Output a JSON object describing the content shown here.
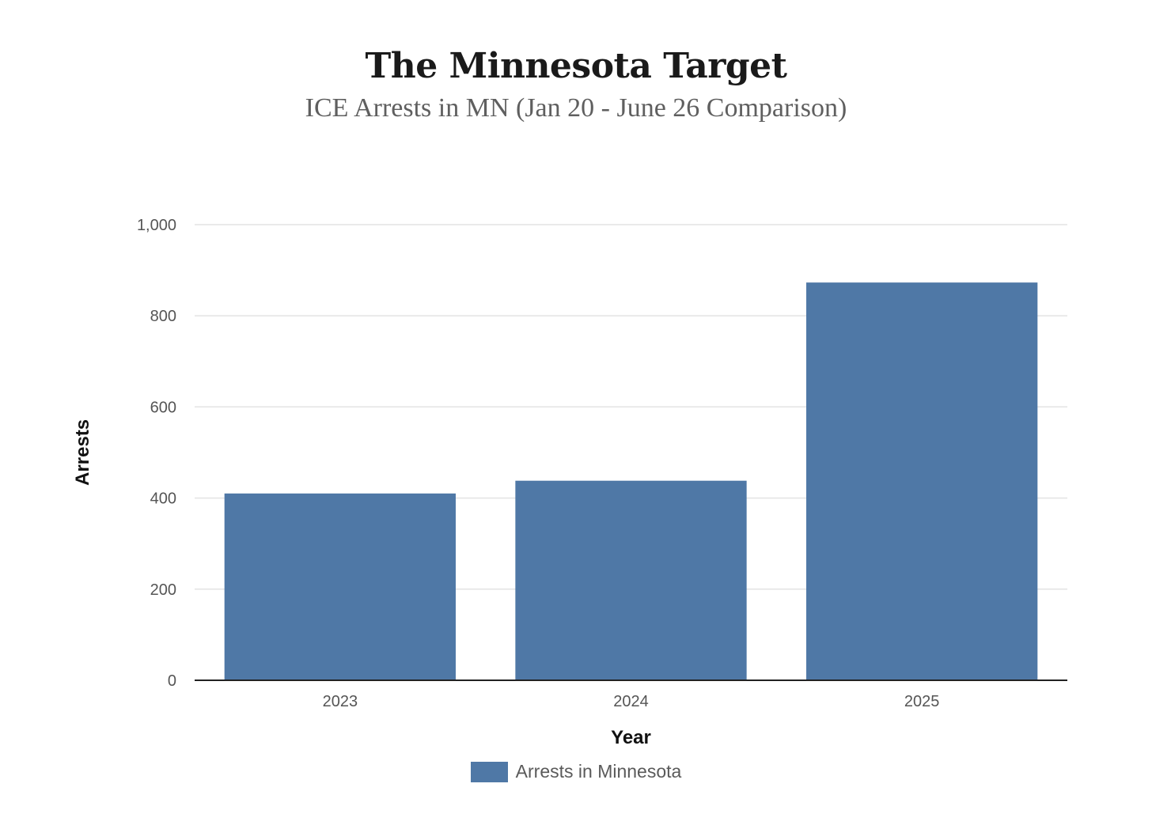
{
  "chart_data": {
    "type": "bar",
    "title": "The Minnesota Target",
    "subtitle": "ICE Arrests in MN (Jan 20 - June 26 Comparison)",
    "xlabel": "Year",
    "ylabel": "Arrests",
    "categories": [
      "2023",
      "2024",
      "2025"
    ],
    "series": [
      {
        "name": "Arrests in Minnesota",
        "values": [
          410,
          438,
          873
        ],
        "color": "#4f78a6"
      }
    ],
    "ylim": [
      0,
      1000
    ],
    "yticks": [
      0,
      200,
      400,
      600,
      800,
      1000
    ],
    "ytick_labels": [
      "0",
      "200",
      "400",
      "600",
      "800",
      "1,000"
    ],
    "grid": true,
    "legend_position": "bottom-center"
  }
}
